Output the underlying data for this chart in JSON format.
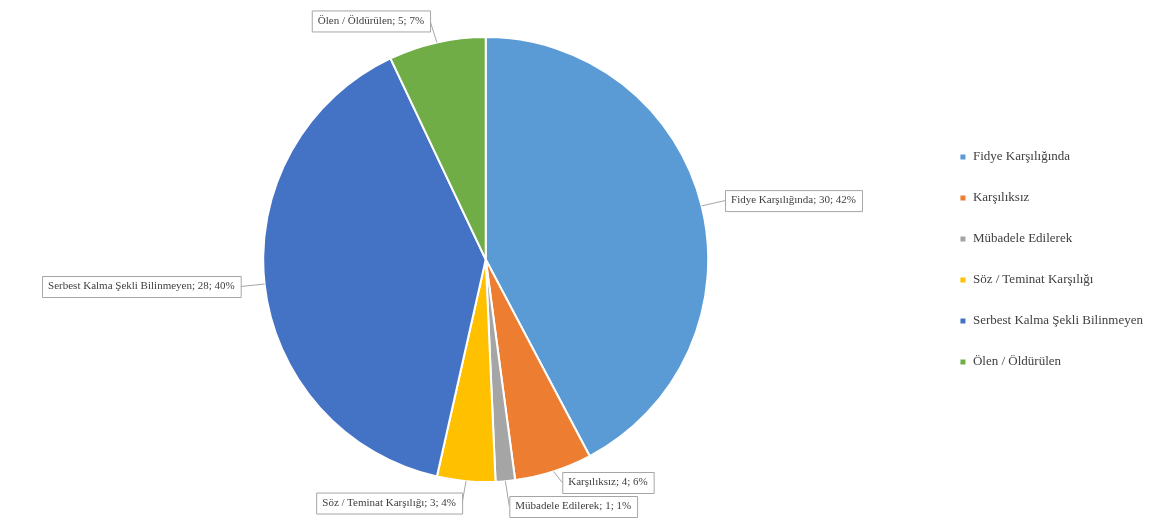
{
  "chart_data": {
    "type": "pie",
    "categories": [
      "Fidye Karşılığında",
      "Karşılıksız",
      "Mübadele Edilerek",
      "Söz / Teminat Karşılığı",
      "Serbest Kalma Şekli Bilinmeyen",
      "Ölen / Öldürülen"
    ],
    "values": [
      30,
      4,
      1,
      3,
      28,
      5
    ],
    "colors": [
      "#5b9bd5",
      "#ed7d31",
      "#a5a5a5",
      "#ffc000",
      "#4472c4",
      "#70ad47"
    ],
    "value_labels": [
      "Fidye Karşılığında; 30; 42%",
      "Karşılıksız; 4; 6%",
      "Mübadele Edilerek; 1; 1%",
      "Söz / Teminat Karşılığı; 3; 4%",
      "Serbest Kalma Şekli Bilinmeyen; 28; 40%",
      "Ölen / Öldürülen; 5; 7%"
    ],
    "legend": "right"
  }
}
